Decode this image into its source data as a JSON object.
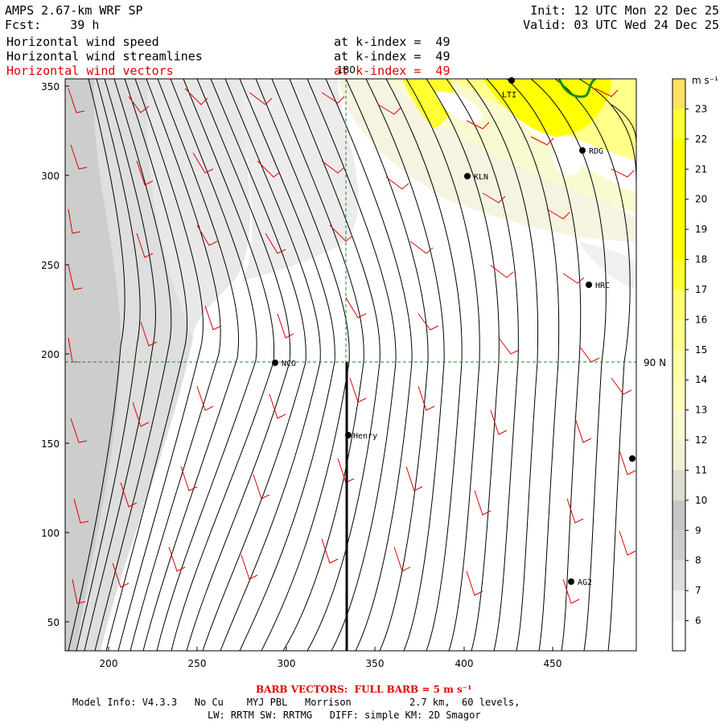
{
  "header": {
    "model_title": "AMPS 2.67-km WRF SP",
    "forecast": "Fcst:    39 h",
    "init": "Init: 12 UTC Mon 22 Dec 25",
    "valid": "Valid: 03 UTC Wed 24 Dec 25",
    "fields": [
      {
        "name": "Horizontal wind speed",
        "level": "at k-index =  49",
        "color": "#000000"
      },
      {
        "name": "Horizontal wind streamlines",
        "level": "at k-index =  49",
        "color": "#000000"
      },
      {
        "name": "Horizontal wind vectors",
        "level": "at k-index =  49",
        "color": "#e00000"
      }
    ]
  },
  "map": {
    "x_ticks": [
      "200",
      "250",
      "300",
      "350",
      "400",
      "450"
    ],
    "y_ticks": [
      "350",
      "300",
      "250",
      "200",
      "150",
      "100",
      "50"
    ],
    "meridian_label": "180",
    "parallel_label": "90 N",
    "stations": [
      {
        "name": "LTI"
      },
      {
        "name": "RDG"
      },
      {
        "name": "KLN"
      },
      {
        "name": "HRC"
      },
      {
        "name": "NCO"
      },
      {
        "name": "Henry"
      },
      {
        "name": "AG2"
      },
      {
        "name": ""
      }
    ]
  },
  "colorbar": {
    "unit": "m s⁻¹",
    "levels": [
      "6",
      "7",
      "8",
      "9",
      "10",
      "11",
      "12",
      "13",
      "14",
      "15",
      "16",
      "17",
      "18",
      "19",
      "20",
      "21",
      "22",
      "23"
    ],
    "colors": [
      "#ffffff",
      "#f0f0f0",
      "#dedede",
      "#cdcdcd",
      "#c6c6c6",
      "#dcdcd0",
      "#f2f2d6",
      "#fafad0",
      "#fefeb8",
      "#ffffa6",
      "#ffff8a",
      "#ffff70",
      "#ffff30",
      "#ffff00",
      "#ffff00",
      "#ffff00",
      "#ffff00",
      "#ffff38",
      "#ffe060"
    ]
  },
  "footer": {
    "barb_note": "BARB VECTORS:  FULL BARB = 5 m s⁻¹",
    "model_info_line1": "Model Info: V4.3.3   No Cu    MYJ PBL   Morrison          2.7 km,  60 levels,",
    "model_info_line2": "LW: RRTM SW: RRTMG   DIFF: simple KM: 2D Smagor"
  }
}
